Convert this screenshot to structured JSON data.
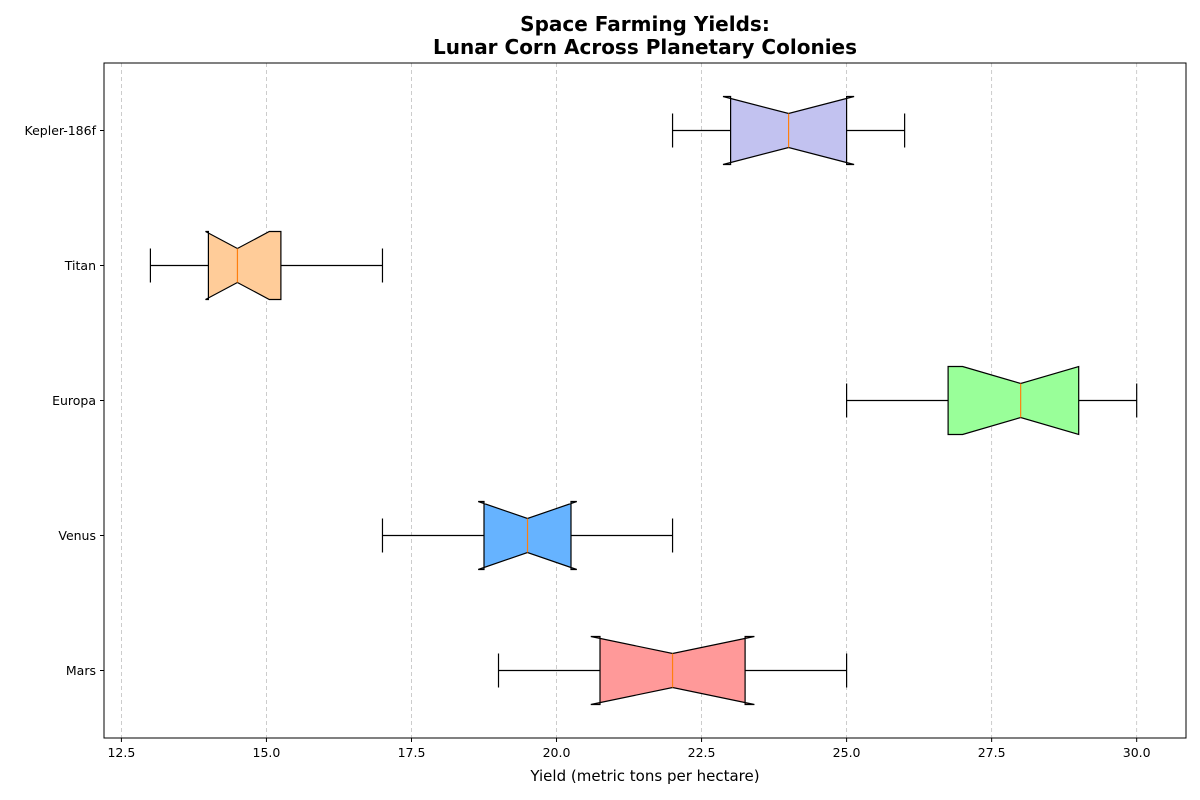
{
  "chart_data": {
    "type": "boxplot",
    "orientation": "horizontal",
    "notched": true,
    "title_lines": [
      "Space Farming Yields:",
      "Lunar Corn Across Planetary Colonies"
    ],
    "xlabel": "Yield (metric tons per hectare)",
    "ylabel": "",
    "xlim": [
      12.2,
      30.85
    ],
    "x_ticks": [
      "12.5",
      "15.0",
      "17.5",
      "20.0",
      "22.5",
      "25.0",
      "27.5",
      "30.0"
    ],
    "x_tick_values": [
      12.5,
      15.0,
      17.5,
      20.0,
      22.5,
      25.0,
      27.5,
      30.0
    ],
    "grid": "x-dashed",
    "median_color": "#ff7f0e",
    "categories": [
      "Mars",
      "Venus",
      "Europa",
      "Titan",
      "Kepler-186f"
    ],
    "boxes": [
      {
        "name": "Mars",
        "min": 19.0,
        "q1": 20.75,
        "median": 22.0,
        "q3": 23.25,
        "max": 25.0,
        "notch_low": 20.59,
        "notch_high": 23.41,
        "color": "#ff9999"
      },
      {
        "name": "Venus",
        "min": 17.0,
        "q1": 18.75,
        "median": 19.5,
        "q3": 20.25,
        "max": 22.0,
        "notch_low": 18.65,
        "notch_high": 20.35,
        "color": "#66b3ff"
      },
      {
        "name": "Europa",
        "min": 25.0,
        "q1": 26.75,
        "median": 28.0,
        "q3": 29.0,
        "max": 30.0,
        "notch_low": 27.0,
        "notch_high": 29.0,
        "color": "#99ff99"
      },
      {
        "name": "Titan",
        "min": 13.0,
        "q1": 14.0,
        "median": 14.5,
        "q3": 15.25,
        "max": 17.0,
        "notch_low": 13.95,
        "notch_high": 15.05,
        "color": "#ffcc99"
      },
      {
        "name": "Kepler-186f",
        "min": 22.0,
        "q1": 23.0,
        "median": 24.0,
        "q3": 25.0,
        "max": 26.0,
        "notch_low": 22.87,
        "notch_high": 25.13,
        "color": "#c2c2f0"
      }
    ]
  }
}
